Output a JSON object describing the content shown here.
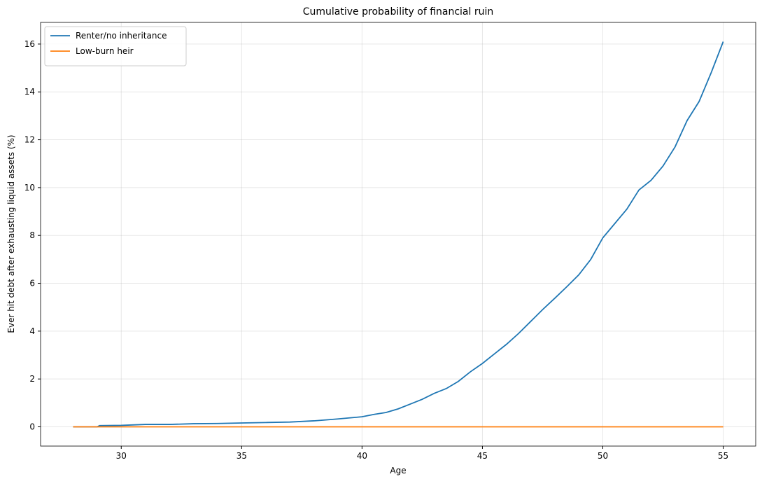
{
  "chart_data": {
    "type": "line",
    "title": "Cumulative probability of financial ruin",
    "xlabel": "Age",
    "ylabel": "Ever hit debt after exhausting liquid assets (%)",
    "xlim": [
      26.65,
      56.35
    ],
    "xticks": [
      30,
      35,
      40,
      45,
      50,
      55
    ],
    "ylim": [
      -0.805,
      16.905
    ],
    "yticks": [
      0,
      2,
      4,
      6,
      8,
      10,
      12,
      14,
      16
    ],
    "grid": true,
    "legend": "upper left",
    "series": [
      {
        "name": "Renter/no inheritance",
        "color": "#1f77b4",
        "x": [
          28,
          29,
          29.1,
          30,
          31,
          32,
          33,
          34,
          35,
          36,
          37,
          38,
          39,
          40,
          40.5,
          41,
          41.5,
          42,
          42.5,
          43,
          43.5,
          44,
          44.5,
          45,
          45.5,
          46,
          46.5,
          47,
          47.5,
          48,
          48.5,
          49,
          49.5,
          50,
          50.5,
          51,
          51.5,
          52,
          52.5,
          53,
          53.5,
          54,
          54.5,
          55
        ],
        "values": [
          0,
          0,
          0.05,
          0.06,
          0.1,
          0.1,
          0.13,
          0.14,
          0.16,
          0.18,
          0.2,
          0.25,
          0.33,
          0.42,
          0.52,
          0.6,
          0.75,
          0.95,
          1.15,
          1.4,
          1.6,
          1.9,
          2.3,
          2.65,
          3.05,
          3.45,
          3.9,
          4.4,
          4.9,
          5.37,
          5.85,
          6.35,
          7.0,
          7.9,
          8.5,
          9.1,
          9.9,
          10.3,
          10.9,
          11.7,
          12.8,
          13.6,
          14.8,
          16.1
        ]
      },
      {
        "name": "Low-burn heir",
        "color": "#ff7f0e",
        "x": [
          28,
          55
        ],
        "values": [
          0,
          0
        ]
      }
    ]
  }
}
